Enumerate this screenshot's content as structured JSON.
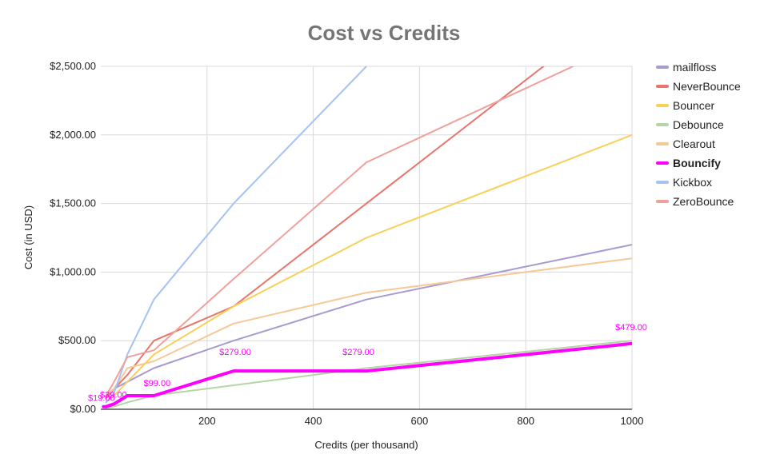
{
  "chart_data": {
    "type": "line",
    "title": "Cost vs Credits",
    "xlabel": "Credits (per thousand)",
    "ylabel": "Cost (in USD)",
    "xlim": [
      0,
      1000
    ],
    "ylim": [
      0,
      2500
    ],
    "x_ticks": [
      200,
      400,
      600,
      800,
      1000
    ],
    "x_tick_labels": [
      "200",
      "400",
      "600",
      "800",
      "1000"
    ],
    "y_ticks": [
      0,
      500,
      1000,
      1500,
      2000,
      2500
    ],
    "y_tick_labels": [
      "$0.00",
      "$500.00",
      "$1,000.00",
      "$1,500.00",
      "$2,000.00",
      "$2,500.00"
    ],
    "grid": true,
    "legend": "right",
    "series": [
      {
        "name": "mailfloss",
        "color": "#a99ad1",
        "bold": false,
        "points": [
          [
            10,
            100
          ],
          [
            25,
            150
          ],
          [
            50,
            200
          ],
          [
            100,
            300
          ],
          [
            250,
            500
          ],
          [
            500,
            800
          ],
          [
            1000,
            1200
          ]
        ]
      },
      {
        "name": "NeverBounce",
        "color": "#e8756c",
        "bold": false,
        "points": [
          [
            10,
            80
          ],
          [
            25,
            150
          ],
          [
            50,
            250
          ],
          [
            100,
            500
          ],
          [
            250,
            750
          ],
          [
            500,
            1500
          ],
          [
            1000,
            3000
          ]
        ]
      },
      {
        "name": "Bouncer",
        "color": "#f8d058",
        "bold": false,
        "points": [
          [
            10,
            50
          ],
          [
            25,
            100
          ],
          [
            50,
            200
          ],
          [
            100,
            400
          ],
          [
            250,
            750
          ],
          [
            500,
            1250
          ],
          [
            1000,
            2000
          ]
        ]
      },
      {
        "name": "Debounce",
        "color": "#b4d6a4",
        "bold": false,
        "points": [
          [
            10,
            10
          ],
          [
            25,
            20
          ],
          [
            50,
            50
          ],
          [
            100,
            100
          ],
          [
            250,
            175
          ],
          [
            500,
            300
          ],
          [
            1000,
            500
          ]
        ]
      },
      {
        "name": "Clearout",
        "color": "#f6c895",
        "bold": false,
        "points": [
          [
            10,
            100
          ],
          [
            25,
            150
          ],
          [
            50,
            300
          ],
          [
            100,
            350
          ],
          [
            250,
            625
          ],
          [
            500,
            850
          ],
          [
            1000,
            1100
          ]
        ]
      },
      {
        "name": "Bouncify",
        "color": "#ff00ff",
        "bold": true,
        "points": [
          [
            5,
            19
          ],
          [
            10,
            19
          ],
          [
            25,
            39
          ],
          [
            50,
            99
          ],
          [
            100,
            99
          ],
          [
            250,
            279
          ],
          [
            500,
            279
          ],
          [
            1000,
            479
          ]
        ]
      },
      {
        "name": "Kickbox",
        "color": "#a4c2f4",
        "bold": false,
        "points": [
          [
            10,
            50
          ],
          [
            25,
            120
          ],
          [
            50,
            400
          ],
          [
            100,
            800
          ],
          [
            250,
            1500
          ],
          [
            500,
            2500
          ]
        ]
      },
      {
        "name": "ZeroBounce",
        "color": "#f0a09a",
        "bold": false,
        "points": [
          [
            10,
            100
          ],
          [
            25,
            200
          ],
          [
            50,
            380
          ],
          [
            100,
            430
          ],
          [
            250,
            950
          ],
          [
            500,
            1800
          ],
          [
            1000,
            2700
          ]
        ]
      }
    ],
    "annotations": [
      {
        "x": 10,
        "y": 19,
        "label": "$19.00"
      },
      {
        "x": 25,
        "y": 39,
        "label": "$39.00"
      },
      {
        "x": 100,
        "y": 99,
        "label": "$99.00"
      },
      {
        "x": 250,
        "y": 279,
        "label": "$279.00"
      },
      {
        "x": 500,
        "y": 279,
        "label": "$279.00"
      },
      {
        "x": 1000,
        "y": 479,
        "label": "$479.00"
      }
    ]
  }
}
